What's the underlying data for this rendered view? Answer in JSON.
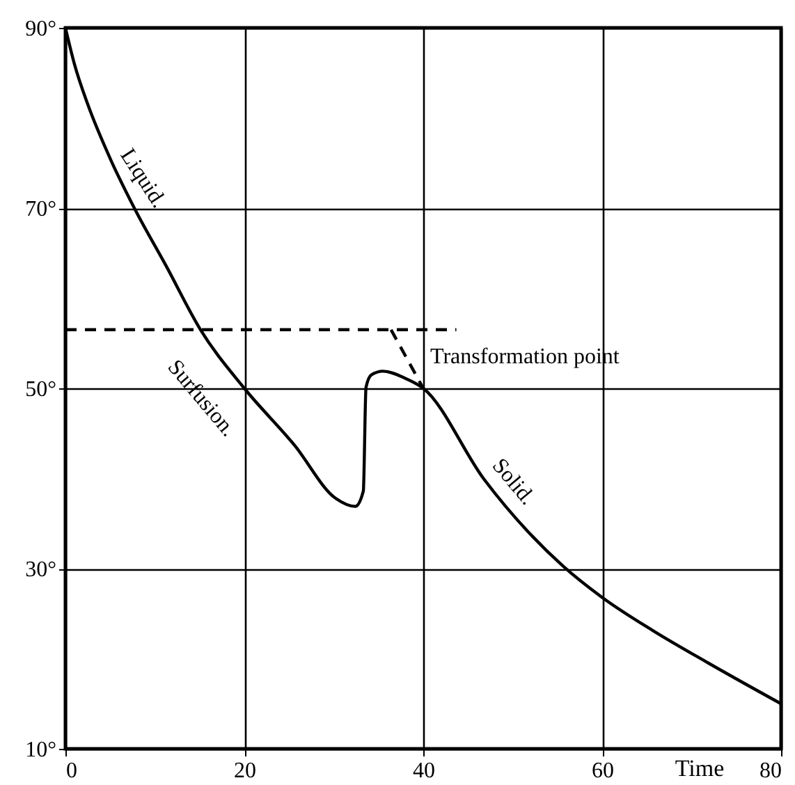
{
  "chart_data": {
    "type": "line",
    "xlabel": "Time",
    "xlim": [
      0,
      80
    ],
    "xticks": [
      0,
      20,
      40,
      60,
      80
    ],
    "ylim": [
      10,
      90
    ],
    "yticks": [
      {
        "value": 10,
        "label": "10°"
      },
      {
        "value": 30,
        "label": "30°"
      },
      {
        "value": 50,
        "label": "50°"
      },
      {
        "value": 70,
        "label": "70°"
      },
      {
        "value": 90,
        "label": "90°"
      }
    ],
    "grid": true,
    "marker": "none",
    "series": [
      {
        "color": "#000000",
        "line_style": "solid",
        "x": [
          0,
          1,
          2.5,
          5,
          7.7,
          11.3,
          15.1,
          20,
          25.6,
          30.2,
          32.4,
          33.3,
          33.6,
          34.2,
          35.5,
          38,
          40,
          46.8,
          55.6,
          60,
          65.7,
          71.9,
          80
        ],
        "values": [
          90,
          86,
          81.5,
          75.5,
          70,
          63.5,
          56.5,
          50,
          43.7,
          37.8,
          36.9,
          38.6,
          50.1,
          51.5,
          51.9,
          51.1,
          50,
          39.9,
          30.3,
          26.8,
          23.1,
          19.5,
          15
        ]
      },
      {
        "color": "#000000",
        "line_style": "dashed",
        "x": [
          0,
          43.7
        ],
        "values": [
          56.5,
          56.5
        ]
      },
      {
        "color": "#000000",
        "line_style": "dashed",
        "x": [
          36.4,
          40
        ],
        "values": [
          56.5,
          50
        ]
      }
    ],
    "annotations": [
      "Liquid.",
      "Surfusion.",
      "Solid.",
      "Transformation point"
    ]
  }
}
